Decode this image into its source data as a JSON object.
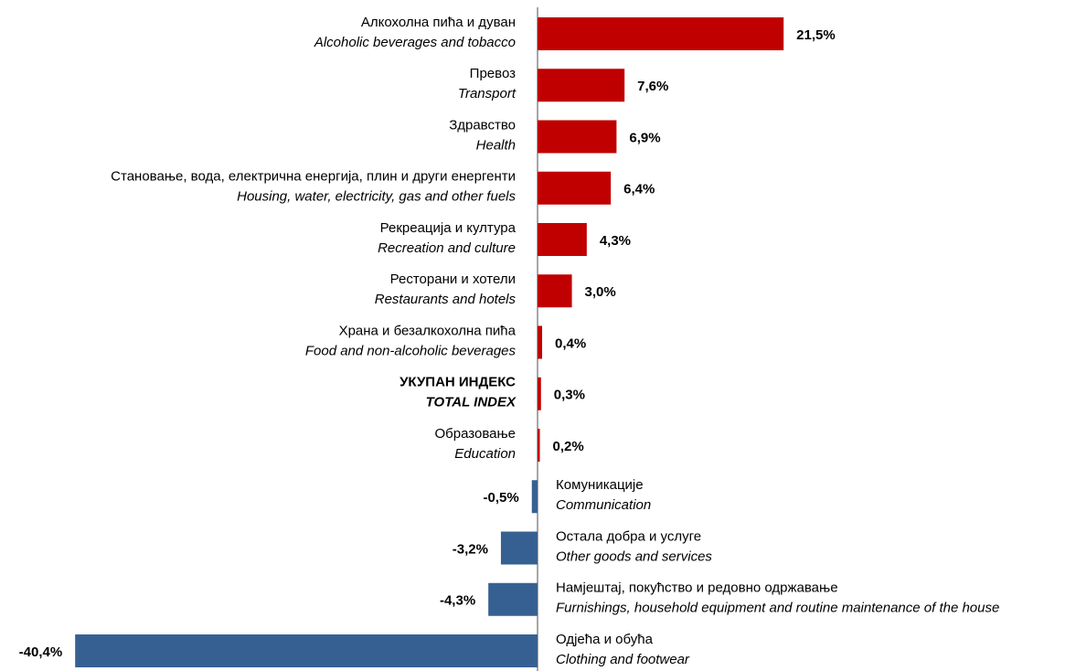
{
  "chart_data": {
    "type": "bar",
    "orientation": "horizontal",
    "categories": [
      "Алкохолна пића и дуван",
      "Превоз",
      "Здравство",
      "Становање, вода, електрична енергија, плин и други енергенти",
      "Рекреација и култура",
      "Ресторани и хотели",
      "Храна и безалкохолна пића",
      "УКУПАН ИНДЕКС",
      "Образовање",
      "Комуникације",
      "Остала добра и услуге",
      "Намјештај, покућство и редовно одржавање",
      "Одјећа и обућа"
    ],
    "categories_en": [
      "Alcoholic beverages and tobacco",
      "Transport",
      "Health",
      "Housing, water, electricity, gas and other fuels",
      "Recreation and culture",
      "Restaurants and hotels",
      "Food and non-alcoholic beverages",
      "TOTAL INDEX",
      "Education",
      "Communication",
      "Other goods and services",
      "Furnishings, household equipment and routine maintenance of the house",
      "Clothing and footwear"
    ],
    "values": [
      21.5,
      7.6,
      6.9,
      6.4,
      4.3,
      3.0,
      0.4,
      0.3,
      0.2,
      -0.5,
      -3.2,
      -4.3,
      -40.4
    ],
    "value_labels": [
      "21,5%",
      "7,6%",
      "6,9%",
      "6,4%",
      "4,3%",
      "3,0%",
      "0,4%",
      "0,3%",
      "0,2%",
      "-0,5%",
      "-3,2%",
      "-4,3%",
      "-40,4%"
    ],
    "positive_color": "#c00000",
    "negative_color": "#376092",
    "highlight": 7
  }
}
